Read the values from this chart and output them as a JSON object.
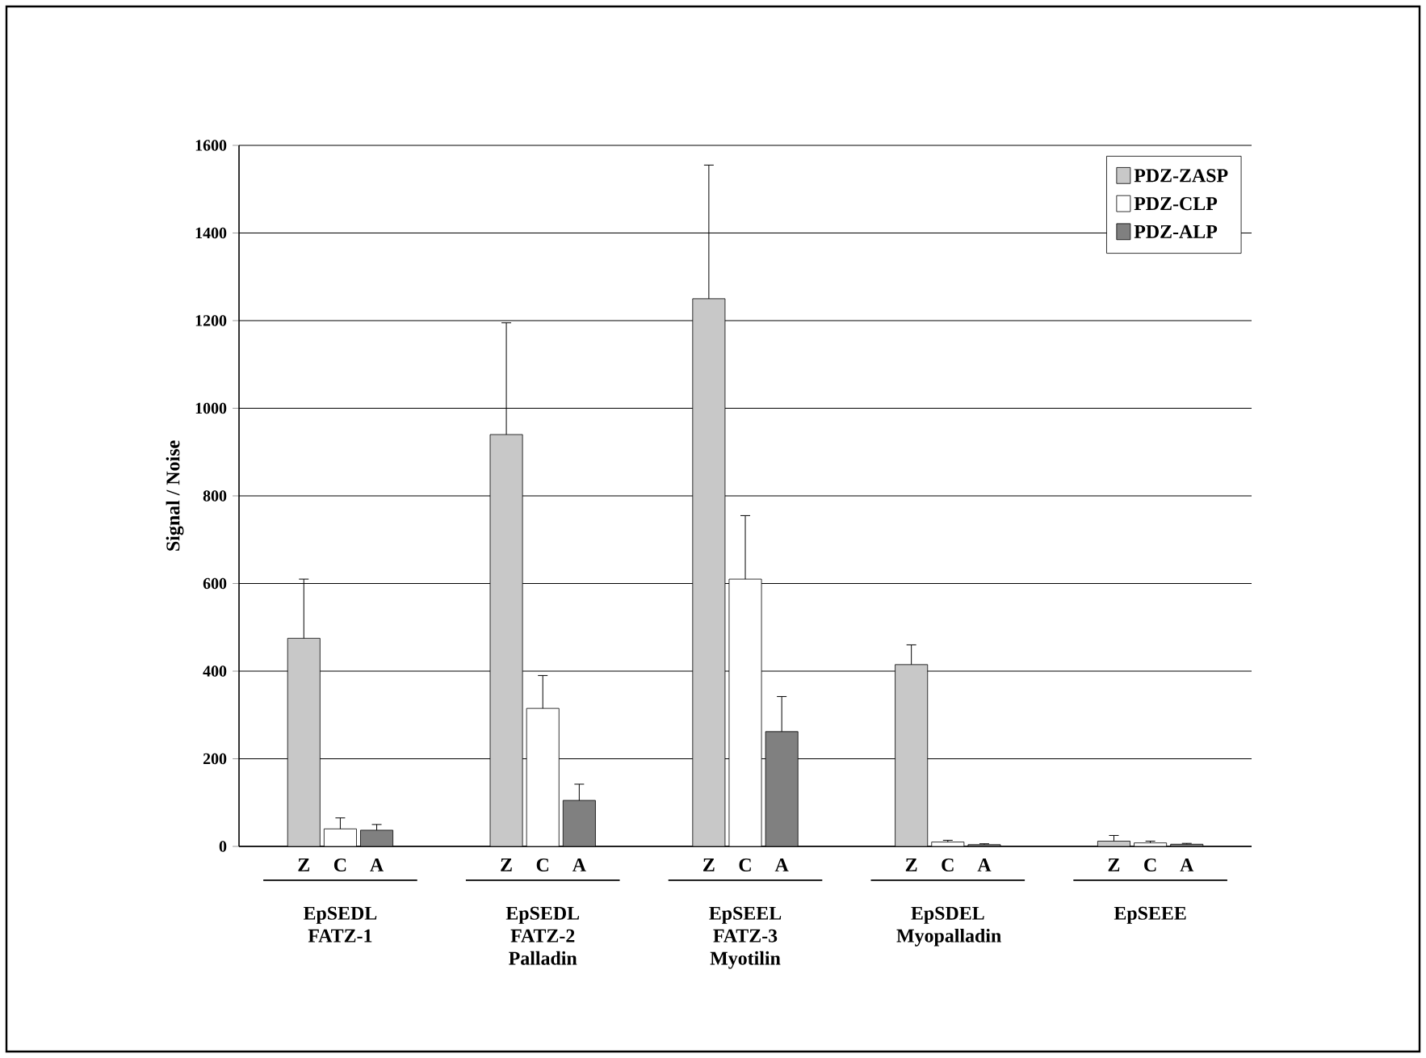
{
  "chart_data": {
    "type": "bar",
    "ylabel": "Signal / Noise",
    "categories": [
      "EpSEDL FATZ-1",
      "EpSEDL FATZ-2 Palladin",
      "EpSEEL FATZ-3 Myotilin",
      "EpSDEL Myopalladin",
      "EpSEEE"
    ],
    "series": [
      {
        "name": "PDZ-ZASP",
        "color": "#c8c8c8",
        "values": [
          475,
          940,
          1250,
          415,
          12
        ],
        "errors": [
          [
            475,
            610
          ],
          [
            940,
            1195
          ],
          [
            1250,
            1555
          ],
          [
            415,
            460
          ],
          [
            12,
            25
          ]
        ]
      },
      {
        "name": "PDZ-CLP",
        "color": "#ffffff",
        "values": [
          40,
          315,
          610,
          10,
          8
        ],
        "errors": [
          [
            40,
            65
          ],
          [
            315,
            390
          ],
          [
            610,
            755
          ],
          [
            10,
            14
          ],
          [
            8,
            12
          ]
        ]
      },
      {
        "name": "PDZ-ALP",
        "color": "#808080",
        "values": [
          37,
          105,
          262,
          4,
          5
        ],
        "errors": [
          [
            37,
            50
          ],
          [
            105,
            142
          ],
          [
            262,
            342
          ],
          [
            4,
            6
          ],
          [
            5,
            7
          ]
        ]
      }
    ],
    "ylim": [
      0,
      1600
    ],
    "yticks": [
      0,
      200,
      400,
      600,
      800,
      1000,
      1200,
      1400,
      1600
    ],
    "grid": "y",
    "legend": "top right",
    "annotations": [
      "Z",
      "C",
      "A",
      "Z",
      "C",
      "A",
      "Z",
      "C",
      "A",
      "Z",
      "C",
      "A",
      "Z",
      "C",
      "A"
    ]
  }
}
